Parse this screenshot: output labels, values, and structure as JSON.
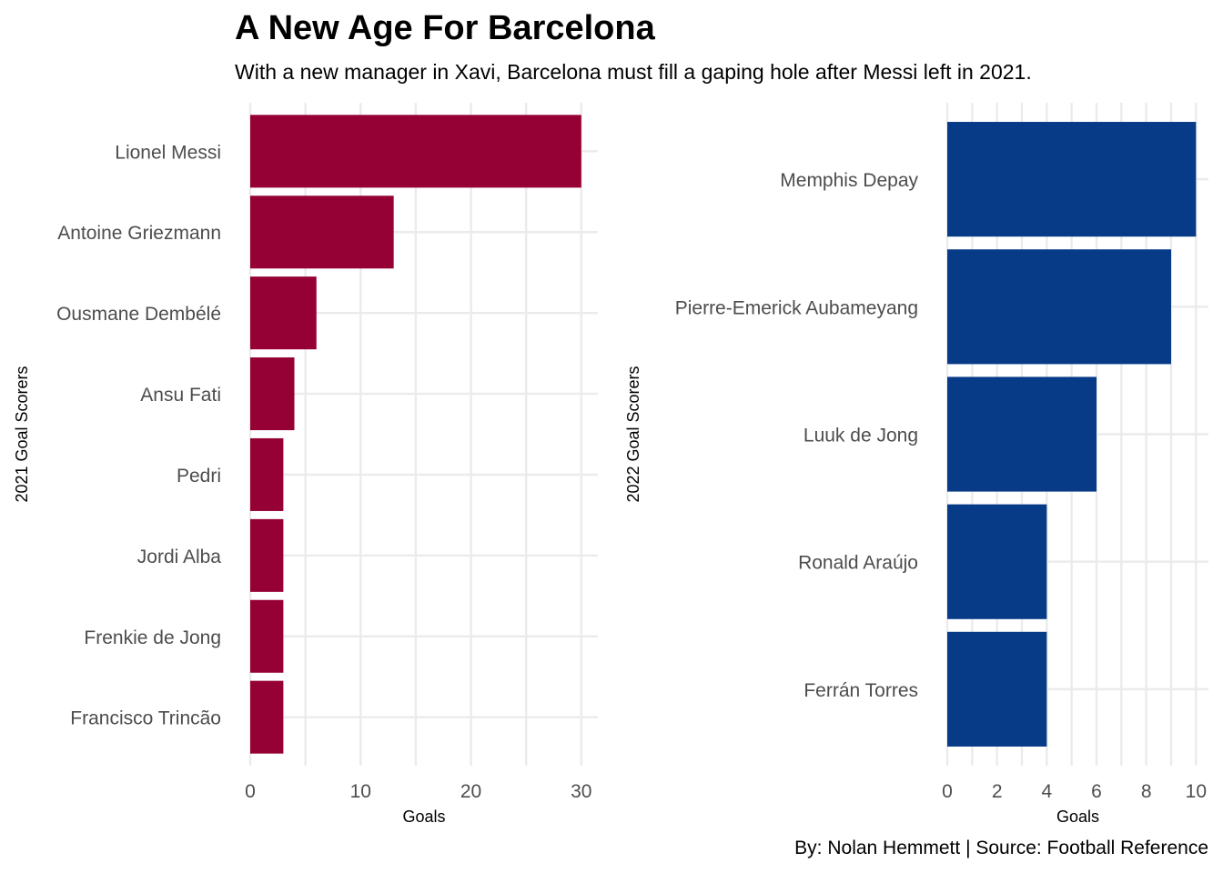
{
  "title": "A New Age For Barcelona",
  "subtitle": "With a new manager in Xavi, Barcelona must fill a gaping hole after Messi left in 2021.",
  "caption": "By: Nolan Hemmett | Source: Football Reference",
  "chart_data": [
    {
      "type": "bar",
      "orientation": "horizontal",
      "categories": [
        "Lionel Messi",
        "Antoine Griezmann",
        "Ousmane Dembélé",
        "Ansu Fati",
        "Pedri",
        "Jordi Alba",
        "Frenkie de Jong",
        "Francisco Trincão"
      ],
      "values": [
        30,
        13,
        6,
        4,
        3,
        3,
        3,
        3
      ],
      "xlabel": "Goals",
      "ylabel": "2021 Goal Scorers",
      "xlim": [
        0,
        31.5
      ],
      "xticks": [
        0,
        10,
        20,
        30
      ],
      "color": "#950035",
      "grid": true
    },
    {
      "type": "bar",
      "orientation": "horizontal",
      "categories": [
        "Memphis Depay",
        "Pierre-Emerick Aubameyang",
        "Luuk de Jong",
        "Ronald Araújo",
        "Ferrán Torres"
      ],
      "values": [
        10,
        9,
        6,
        4,
        4
      ],
      "xlabel": "Goals",
      "ylabel": "2022 Goal Scorers",
      "xlim": [
        0,
        10.5
      ],
      "xticks": [
        0,
        2,
        4,
        6,
        8,
        10
      ],
      "color": "#073B88",
      "grid": true
    }
  ]
}
